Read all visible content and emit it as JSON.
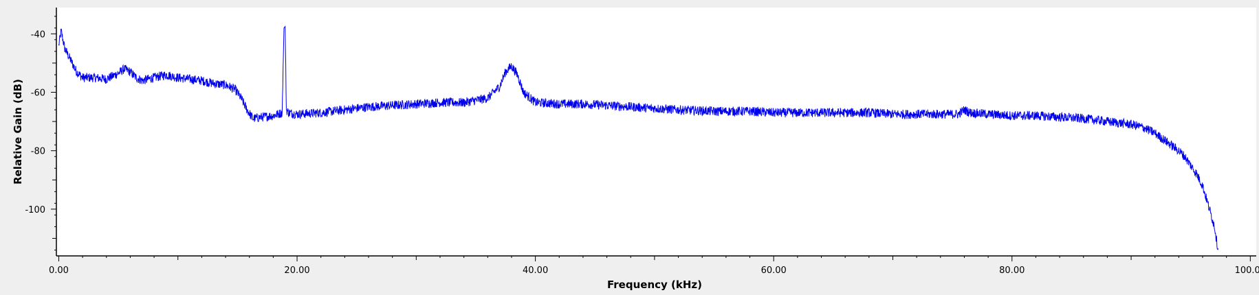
{
  "chart_data": {
    "type": "line",
    "title": "",
    "xlabel": "Frequency (kHz)",
    "ylabel": "Relative Gain (dB)",
    "xlim": [
      -0.2,
      100.5
    ],
    "ylim": [
      -116,
      -31
    ],
    "x_ticks": [
      0,
      20,
      40,
      60,
      80,
      100
    ],
    "x_tick_labels": [
      "0.00",
      "20.00",
      "40.00",
      "60.00",
      "80.00",
      "100.00"
    ],
    "y_ticks": [
      -40,
      -60,
      -80,
      -100
    ],
    "y_tick_labels": [
      "-40",
      "-60",
      "-80",
      "-100"
    ],
    "grid": false,
    "legend": "none",
    "series": [
      {
        "color": "#0000ee",
        "noise_db": 1.6,
        "x": [
          0.0,
          0.2,
          0.5,
          1.0,
          1.5,
          2.0,
          3.0,
          4.0,
          5.0,
          5.5,
          6.0,
          6.5,
          7.0,
          8.0,
          9.0,
          10.0,
          11.0,
          12.0,
          13.0,
          14.0,
          14.8,
          15.3,
          15.8,
          16.3,
          17.0,
          18.0,
          18.75,
          18.9,
          19.0,
          19.1,
          19.3,
          20.0,
          22.0,
          24.0,
          26.0,
          28.0,
          30.0,
          32.0,
          34.0,
          36.0,
          37.0,
          37.5,
          38.0,
          38.5,
          39.0,
          40.0,
          42.0,
          44.0,
          46.0,
          48.0,
          50.0,
          52.0,
          55.0,
          58.0,
          60.0,
          62.0,
          64.0,
          66.0,
          68.0,
          70.0,
          72.0,
          74.0,
          75.5,
          76.0,
          76.5,
          78.0,
          80.0,
          82.0,
          84.0,
          86.0,
          88.0,
          90.0,
          91.0,
          92.0,
          93.0,
          94.0,
          94.5,
          95.0,
          95.5,
          96.0,
          96.5,
          97.0,
          97.3
        ],
        "y": [
          -44,
          -39,
          -45,
          -49,
          -53,
          -55,
          -55,
          -55.5,
          -53.5,
          -52,
          -53,
          -55,
          -56,
          -55,
          -54,
          -55,
          -55.5,
          -56,
          -57,
          -57.5,
          -59,
          -62,
          -66,
          -69,
          -68.5,
          -68,
          -67,
          -38,
          -37.5,
          -66,
          -67,
          -67.5,
          -67,
          -66,
          -65,
          -64.5,
          -64,
          -63.5,
          -63.5,
          -62,
          -58,
          -53,
          -51,
          -54,
          -60,
          -63.5,
          -64,
          -64,
          -64.5,
          -65,
          -65.5,
          -66,
          -66.5,
          -66.5,
          -67,
          -67,
          -67,
          -67,
          -67,
          -67.5,
          -67.5,
          -67.5,
          -67.5,
          -66,
          -67,
          -67.5,
          -68,
          -68,
          -68.5,
          -69,
          -70,
          -71,
          -72,
          -74,
          -77,
          -80,
          -82,
          -85,
          -88,
          -92,
          -99,
          -106,
          -114
        ]
      }
    ]
  }
}
